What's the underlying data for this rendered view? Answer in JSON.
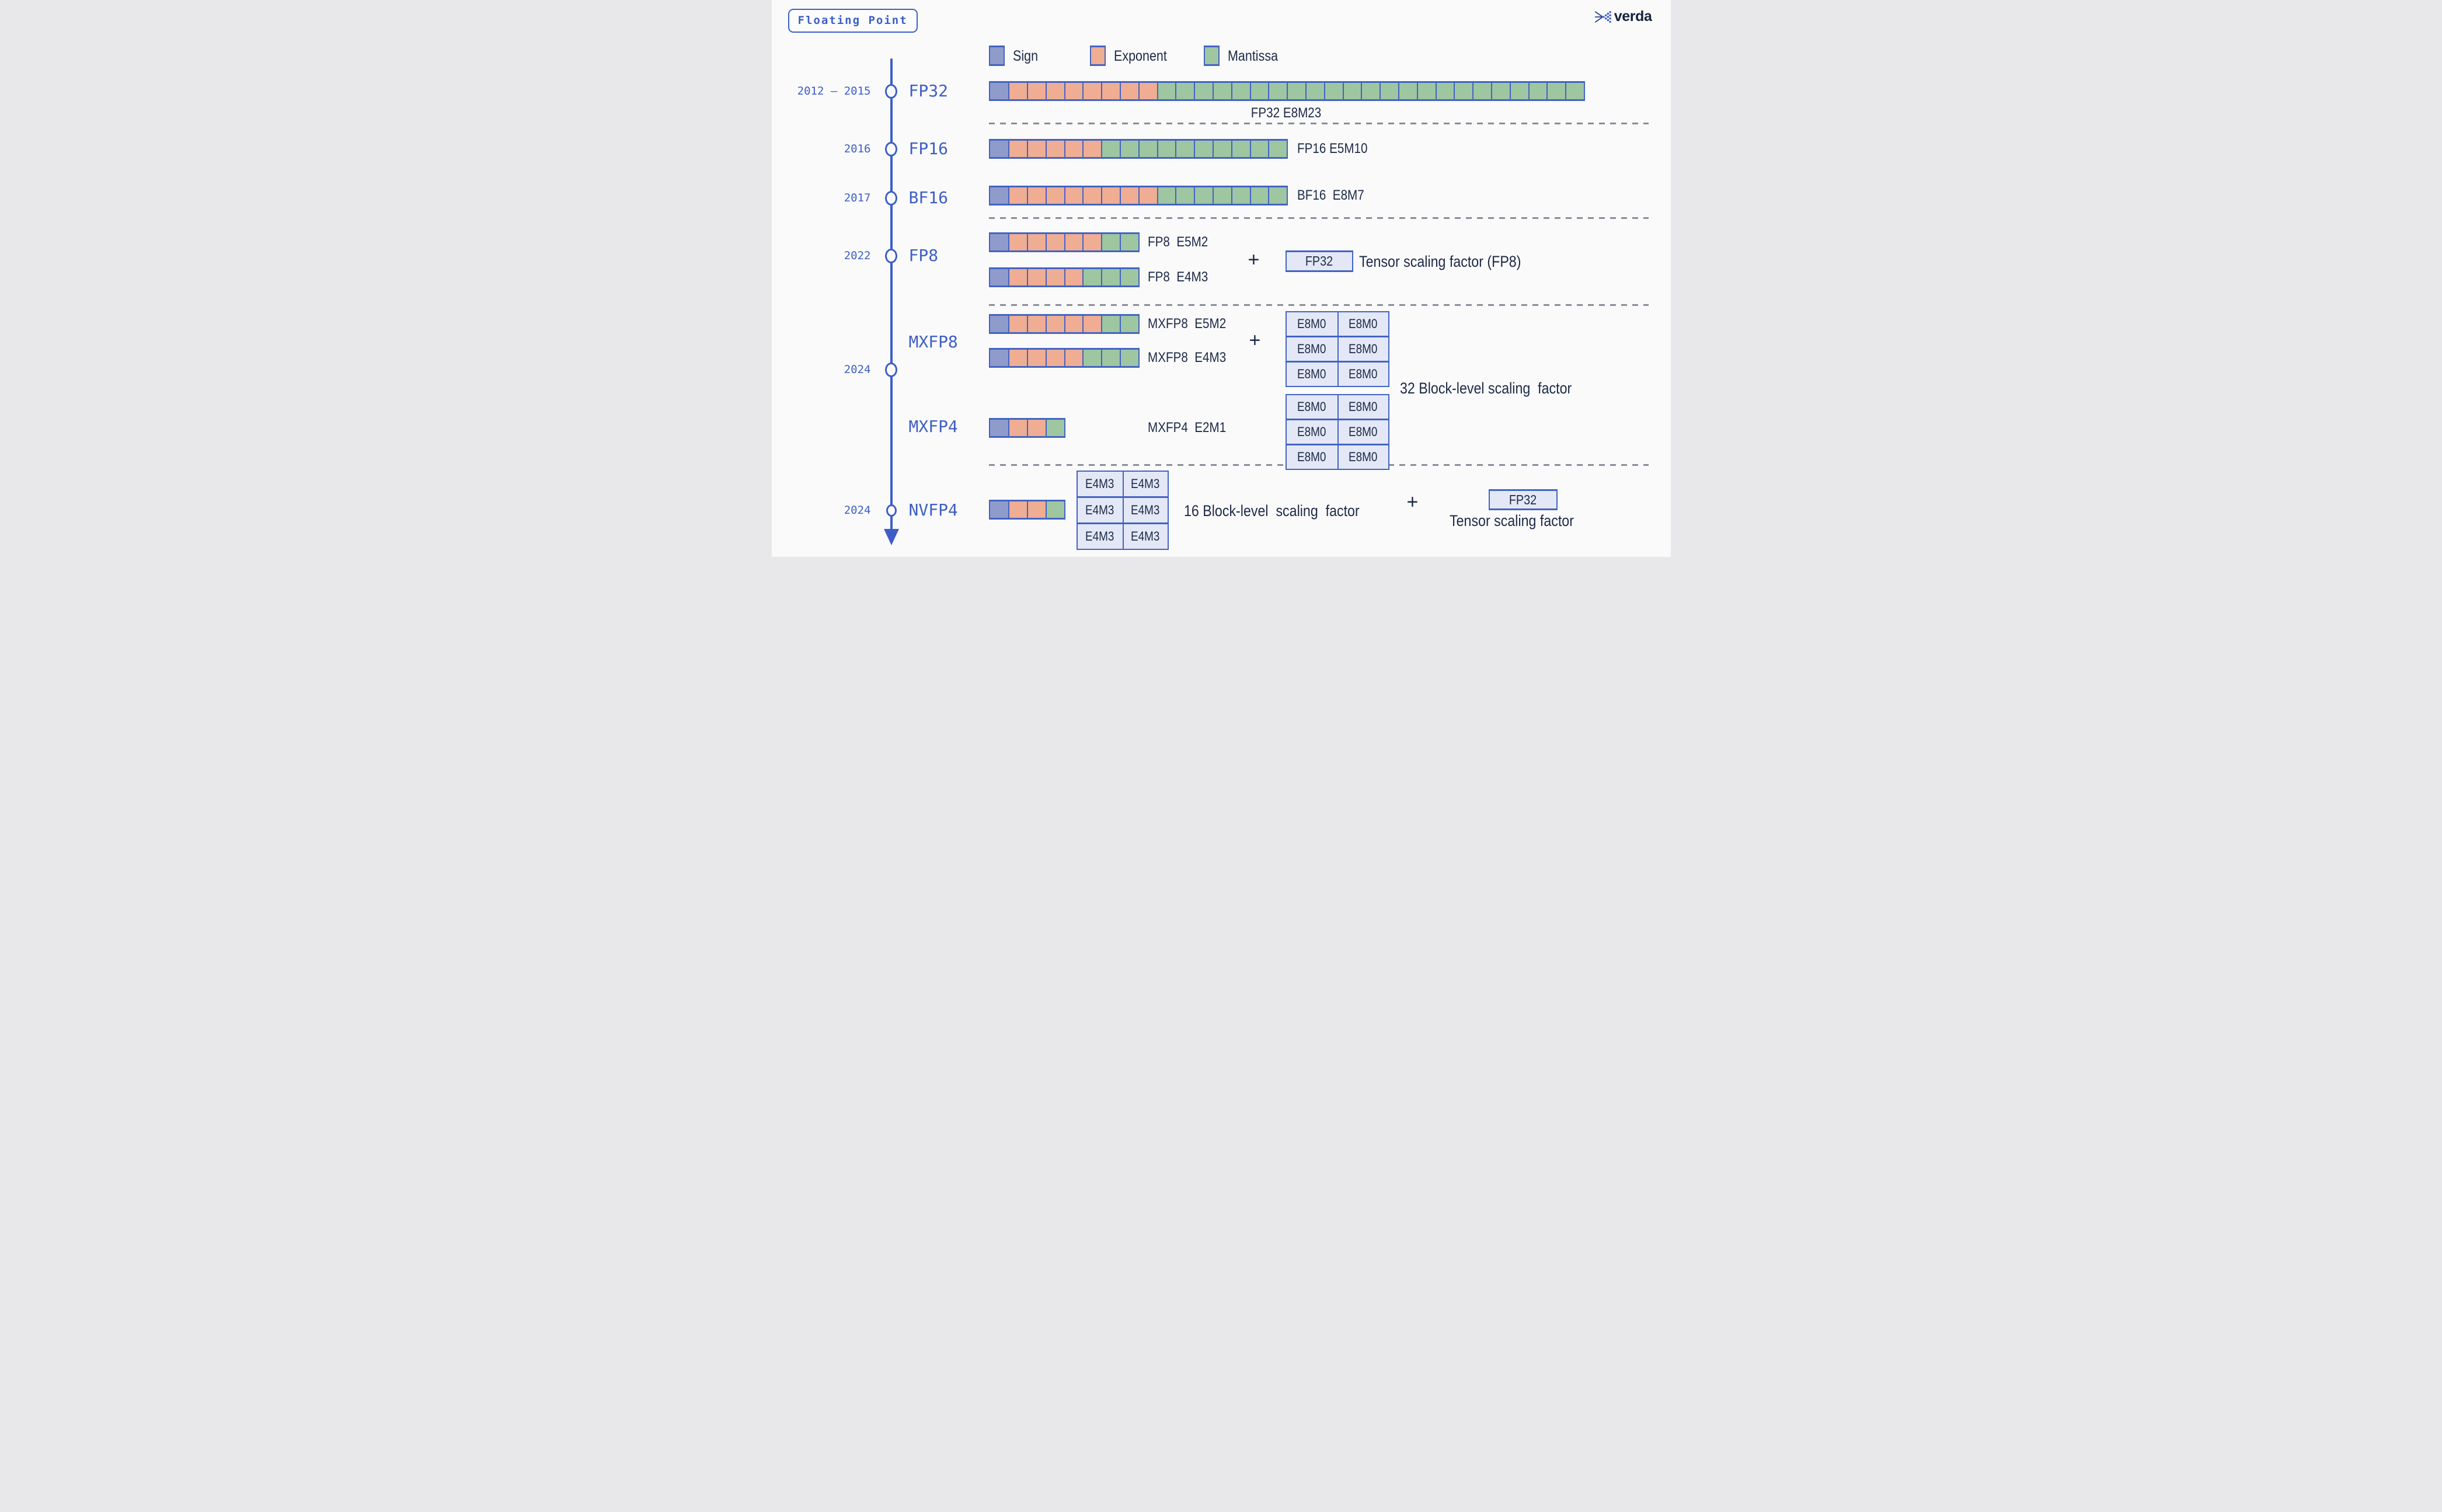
{
  "title_chip": {
    "label": "Floating Point"
  },
  "brand": {
    "name": "verda",
    "icon": "verda-logo"
  },
  "legend": [
    {
      "id": "sign",
      "label": "Sign",
      "color": "#8f9bca"
    },
    {
      "id": "exponent",
      "label": "Exponent",
      "color": "#efad93"
    },
    {
      "id": "mantissa",
      "label": "Mantissa",
      "color": "#9ec6a1"
    }
  ],
  "colors": {
    "accent_blue": "#3d5ec6",
    "bar_border": "#4363c3",
    "navy_text": "#1c2947",
    "scale_box_fill": "#e4e8f6",
    "dash_gray": "#878d99",
    "background": "#fafafa"
  },
  "timeline": {
    "events": [
      {
        "year": "2012 – 2015",
        "format": "FP32",
        "has_circle": true
      },
      {
        "year": "2016",
        "format": "FP16",
        "has_circle": true
      },
      {
        "year": "2017",
        "format": "BF16",
        "has_circle": true
      },
      {
        "year": "2022",
        "format": "FP8",
        "has_circle": true
      },
      {
        "year": "2024",
        "format": "",
        "has_circle": true
      },
      {
        "year": "",
        "format": "MXFP8",
        "has_circle": false
      },
      {
        "year": "",
        "format": "MXFP4",
        "has_circle": false
      },
      {
        "year": "2024",
        "format": "NVFP4",
        "has_circle": true
      }
    ]
  },
  "bit_rows": [
    {
      "id": "fp32",
      "label": "FP32 E8M23",
      "sign_bits": 1,
      "exponent_bits": 8,
      "mantissa_bits": 23
    },
    {
      "id": "fp16",
      "label": "FP16 E5M10",
      "sign_bits": 1,
      "exponent_bits": 5,
      "mantissa_bits": 10
    },
    {
      "id": "bf16",
      "label": "BF16  E8M7",
      "sign_bits": 1,
      "exponent_bits": 8,
      "mantissa_bits": 7
    },
    {
      "id": "fp8-e5m2",
      "label": "FP8  E5M2",
      "sign_bits": 1,
      "exponent_bits": 5,
      "mantissa_bits": 2
    },
    {
      "id": "fp8-e4m3",
      "label": "FP8  E4M3",
      "sign_bits": 1,
      "exponent_bits": 4,
      "mantissa_bits": 3
    },
    {
      "id": "mxfp8-e5m2",
      "label": "MXFP8  E5M2",
      "sign_bits": 1,
      "exponent_bits": 5,
      "mantissa_bits": 2
    },
    {
      "id": "mxfp8-e4m3",
      "label": "MXFP8  E4M3",
      "sign_bits": 1,
      "exponent_bits": 4,
      "mantissa_bits": 3
    },
    {
      "id": "mxfp4",
      "label": "MXFP4  E2M1",
      "sign_bits": 1,
      "exponent_bits": 2,
      "mantissa_bits": 1
    },
    {
      "id": "nvfp4",
      "label": "",
      "sign_bits": 1,
      "exponent_bits": 2,
      "mantissa_bits": 1
    }
  ],
  "scaling": {
    "fp8": {
      "plus": "+",
      "box_label": "FP32",
      "caption": "Tensor scaling factor (FP8)"
    },
    "mxfp8": {
      "plus": "+",
      "cell_label": "E8M0",
      "caption": "32 Block-level scaling  factor"
    },
    "nvfp4": {
      "cell_label": "E4M3",
      "caption": "16 Block-level  scaling  factor",
      "plus": "+",
      "box_label": "FP32",
      "caption2": "Tensor scaling factor"
    }
  }
}
